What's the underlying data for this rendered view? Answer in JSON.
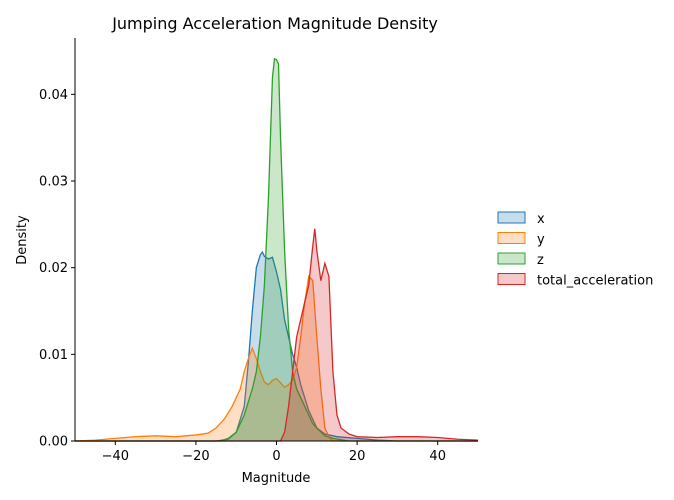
{
  "chart_data": {
    "type": "area",
    "title": "Jumping Acceleration Magnitude Density",
    "xlabel": "Magnitude",
    "ylabel": "Density",
    "xlim": [
      -50,
      50
    ],
    "ylim": [
      0,
      0.0465
    ],
    "xticks": [
      -40,
      -20,
      0,
      20,
      40
    ],
    "xtick_labels": [
      "−40",
      "−20",
      "0",
      "20",
      "40"
    ],
    "yticks": [
      0.0,
      0.01,
      0.02,
      0.03,
      0.04
    ],
    "ytick_labels": [
      "0.00",
      "0.01",
      "0.02",
      "0.03",
      "0.04"
    ],
    "grid": false,
    "legend_position": "right",
    "series": [
      {
        "name": "x",
        "color": "#1f77b4",
        "points": [
          [
            -50,
            0
          ],
          [
            -15,
            0
          ],
          [
            -12,
            0.0002
          ],
          [
            -10,
            0.001
          ],
          [
            -8,
            0.004
          ],
          [
            -7,
            0.009
          ],
          [
            -6,
            0.015
          ],
          [
            -5,
            0.02
          ],
          [
            -4,
            0.0215
          ],
          [
            -3.5,
            0.0218
          ],
          [
            -3,
            0.0213
          ],
          [
            -2,
            0.021
          ],
          [
            -1,
            0.0212
          ],
          [
            0,
            0.0195
          ],
          [
            1,
            0.0175
          ],
          [
            2,
            0.014
          ],
          [
            3,
            0.012
          ],
          [
            4,
            0.01
          ],
          [
            5,
            0.0085
          ],
          [
            6,
            0.0065
          ],
          [
            7,
            0.005
          ],
          [
            8,
            0.0035
          ],
          [
            9,
            0.0025
          ],
          [
            10,
            0.0015
          ],
          [
            12,
            0.0008
          ],
          [
            15,
            0.0005
          ],
          [
            20,
            0.0003
          ],
          [
            25,
            0.0001
          ],
          [
            30,
            0
          ],
          [
            50,
            0
          ]
        ]
      },
      {
        "name": "y",
        "color": "#ff7f0e",
        "points": [
          [
            -50,
            0
          ],
          [
            -45,
            0.0001
          ],
          [
            -40,
            0.0003
          ],
          [
            -35,
            0.0005
          ],
          [
            -30,
            0.0006
          ],
          [
            -25,
            0.0005
          ],
          [
            -20,
            0.0007
          ],
          [
            -17,
            0.0009
          ],
          [
            -15,
            0.0015
          ],
          [
            -13,
            0.0025
          ],
          [
            -11,
            0.004
          ],
          [
            -9,
            0.006
          ],
          [
            -8,
            0.008
          ],
          [
            -7,
            0.0095
          ],
          [
            -6,
            0.0107
          ],
          [
            -5,
            0.0095
          ],
          [
            -4,
            0.008
          ],
          [
            -3,
            0.0068
          ],
          [
            -2,
            0.0065
          ],
          [
            -1,
            0.007
          ],
          [
            0,
            0.0072
          ],
          [
            1,
            0.0067
          ],
          [
            2,
            0.0062
          ],
          [
            3,
            0.0065
          ],
          [
            4,
            0.007
          ],
          [
            5,
            0.0085
          ],
          [
            6,
            0.012
          ],
          [
            7,
            0.016
          ],
          [
            8,
            0.019
          ],
          [
            9,
            0.0185
          ],
          [
            10,
            0.012
          ],
          [
            11,
            0.006
          ],
          [
            12,
            0.0015
          ],
          [
            13,
            0.0005
          ],
          [
            14,
            0
          ],
          [
            50,
            0
          ]
        ]
      },
      {
        "name": "z",
        "color": "#2ca02c",
        "points": [
          [
            -50,
            0
          ],
          [
            -14,
            0
          ],
          [
            -12,
            0.0003
          ],
          [
            -10,
            0.001
          ],
          [
            -8,
            0.003
          ],
          [
            -6,
            0.006
          ],
          [
            -5,
            0.008
          ],
          [
            -4,
            0.012
          ],
          [
            -3,
            0.018
          ],
          [
            -2,
            0.028
          ],
          [
            -1.5,
            0.035
          ],
          [
            -1,
            0.042
          ],
          [
            -0.5,
            0.0441
          ],
          [
            0,
            0.044
          ],
          [
            0.5,
            0.0435
          ],
          [
            1,
            0.035
          ],
          [
            2,
            0.022
          ],
          [
            3,
            0.013
          ],
          [
            4,
            0.008
          ],
          [
            5,
            0.006
          ],
          [
            6,
            0.005
          ],
          [
            7,
            0.004
          ],
          [
            8,
            0.003
          ],
          [
            9,
            0.002
          ],
          [
            10,
            0.0015
          ],
          [
            12,
            0.0006
          ],
          [
            14,
            0.0003
          ],
          [
            18,
            0
          ],
          [
            50,
            0
          ]
        ]
      },
      {
        "name": "total_acceleration",
        "color": "#d62728",
        "points": [
          [
            -50,
            0
          ],
          [
            1,
            0
          ],
          [
            2,
            0.001
          ],
          [
            3,
            0.004
          ],
          [
            4,
            0.008
          ],
          [
            5,
            0.012
          ],
          [
            6,
            0.014
          ],
          [
            7,
            0.016
          ],
          [
            8,
            0.018
          ],
          [
            9,
            0.0225
          ],
          [
            9.5,
            0.0245
          ],
          [
            10,
            0.022
          ],
          [
            11,
            0.0185
          ],
          [
            12,
            0.0205
          ],
          [
            13,
            0.019
          ],
          [
            14,
            0.008
          ],
          [
            15,
            0.003
          ],
          [
            16,
            0.0015
          ],
          [
            18,
            0.0008
          ],
          [
            20,
            0.0005
          ],
          [
            25,
            0.0004
          ],
          [
            30,
            0.0005
          ],
          [
            35,
            0.0005
          ],
          [
            40,
            0.0004
          ],
          [
            45,
            0.0002
          ],
          [
            50,
            0.0001
          ]
        ]
      }
    ]
  }
}
